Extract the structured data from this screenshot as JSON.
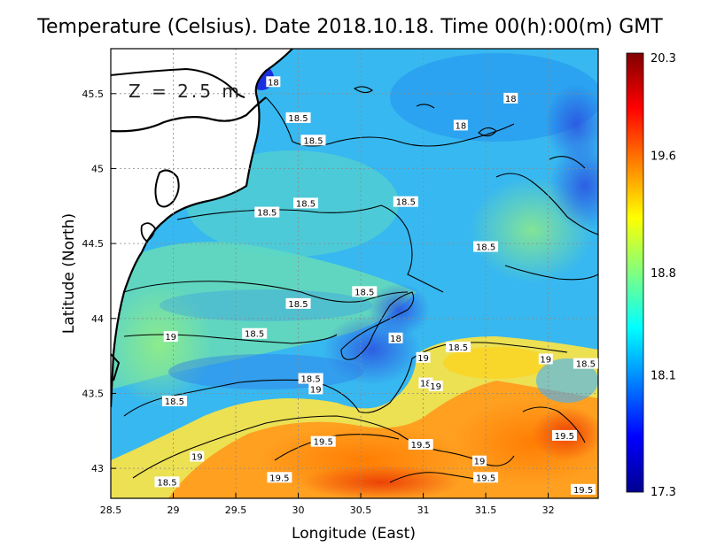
{
  "title": "Temperature (Celsius). Date 2018.10.18. Time 00(h):00(m) GMT",
  "depth_label": "Z = 2.5 m",
  "x_axis": {
    "label": "Longitude (East)",
    "ticks": [
      "28.5",
      "29",
      "29.5",
      "30",
      "30.5",
      "31",
      "31.5",
      "32"
    ],
    "range": [
      28.5,
      32.4
    ]
  },
  "y_axis": {
    "label": "Latitude (North)",
    "ticks": [
      "43",
      "43.5",
      "44",
      "44.5",
      "45",
      "45.5"
    ],
    "range": [
      42.8,
      45.8
    ]
  },
  "colorbar": {
    "ticks": [
      "20.3",
      "19.6",
      "18.8",
      "18.1",
      "17.3"
    ],
    "min": 17.3,
    "max": 20.3,
    "colors": [
      "#00008f",
      "#0000ff",
      "#0080ff",
      "#00ffff",
      "#80ff80",
      "#ffff00",
      "#ff8000",
      "#ff0000",
      "#800000"
    ]
  },
  "contour_labels": [
    {
      "text": "18",
      "lon": 29.8,
      "lat": 45.58
    },
    {
      "text": "18",
      "lon": 31.7,
      "lat": 45.47
    },
    {
      "text": "18.5",
      "lon": 30.0,
      "lat": 45.34
    },
    {
      "text": "18",
      "lon": 31.3,
      "lat": 45.29
    },
    {
      "text": "18.5",
      "lon": 30.12,
      "lat": 45.19
    },
    {
      "text": "18.5",
      "lon": 29.75,
      "lat": 44.71
    },
    {
      "text": "18.5",
      "lon": 30.06,
      "lat": 44.77
    },
    {
      "text": "18.5",
      "lon": 30.86,
      "lat": 44.78
    },
    {
      "text": "18.5",
      "lon": 31.5,
      "lat": 44.48
    },
    {
      "text": "18.5",
      "lon": 30.53,
      "lat": 44.18
    },
    {
      "text": "18.5",
      "lon": 30.0,
      "lat": 44.1
    },
    {
      "text": "18.5",
      "lon": 29.65,
      "lat": 43.9
    },
    {
      "text": "19",
      "lon": 28.98,
      "lat": 43.88
    },
    {
      "text": "18",
      "lon": 30.78,
      "lat": 43.87
    },
    {
      "text": "18.5",
      "lon": 31.28,
      "lat": 43.81
    },
    {
      "text": "19",
      "lon": 31.98,
      "lat": 43.73
    },
    {
      "text": "18.5",
      "lon": 32.3,
      "lat": 43.7
    },
    {
      "text": "19",
      "lon": 31.0,
      "lat": 43.74
    },
    {
      "text": "18.5",
      "lon": 30.1,
      "lat": 43.6
    },
    {
      "text": "18",
      "lon": 31.02,
      "lat": 43.57
    },
    {
      "text": "19",
      "lon": 30.14,
      "lat": 43.53
    },
    {
      "text": "19",
      "lon": 31.1,
      "lat": 43.55
    },
    {
      "text": "18.5",
      "lon": 29.01,
      "lat": 43.45
    },
    {
      "text": "19.5",
      "lon": 30.2,
      "lat": 43.18
    },
    {
      "text": "19.5",
      "lon": 30.98,
      "lat": 43.16
    },
    {
      "text": "19.5",
      "lon": 32.13,
      "lat": 43.22
    },
    {
      "text": "19",
      "lon": 29.19,
      "lat": 43.08
    },
    {
      "text": "19",
      "lon": 31.45,
      "lat": 43.05
    },
    {
      "text": "19.5",
      "lon": 29.85,
      "lat": 42.94
    },
    {
      "text": "19.5",
      "lon": 31.5,
      "lat": 42.94
    },
    {
      "text": "18.5",
      "lon": 28.95,
      "lat": 42.91
    },
    {
      "text": "19.5",
      "lon": 32.28,
      "lat": 42.86
    }
  ]
}
